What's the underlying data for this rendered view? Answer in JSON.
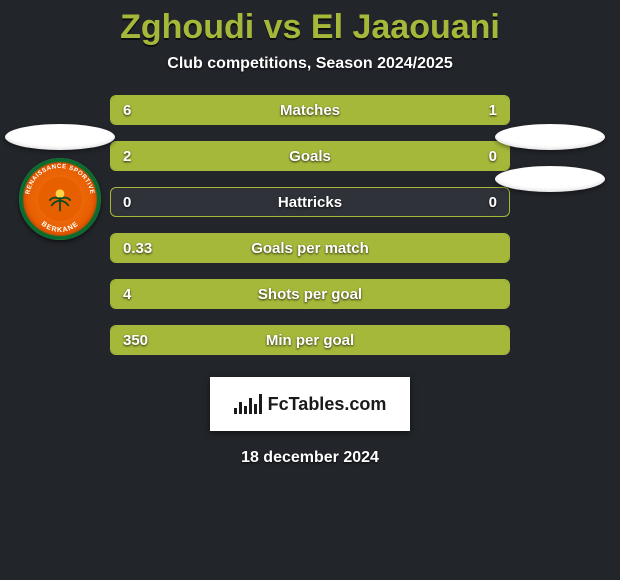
{
  "page": {
    "background_color": "#22252a",
    "title_color": "#a6b83a"
  },
  "title": "Zghoudi vs El Jaaouani",
  "subtitle": "Club competitions, Season 2024/2025",
  "date": "18 december 2024",
  "brand": "FcTables.com",
  "stats": {
    "row_bg": "#2f3238",
    "left_bar_color": "#a6b83a",
    "right_bar_color": "#a6b83a",
    "border_color": "#a6b83a",
    "text_color": "#ffffff",
    "rows": [
      {
        "label": "Matches",
        "left": "6",
        "right": "1",
        "left_pct": 0.857,
        "right_pct": 0.143
      },
      {
        "label": "Goals",
        "left": "2",
        "right": "0",
        "left_pct": 1.0,
        "right_pct": 0.0
      },
      {
        "label": "Hattricks",
        "left": "0",
        "right": "0",
        "left_pct": 0.0,
        "right_pct": 0.0
      },
      {
        "label": "Goals per match",
        "left": "0.33",
        "right": "",
        "left_pct": 1.0,
        "right_pct": 0.0
      },
      {
        "label": "Shots per goal",
        "left": "4",
        "right": "",
        "left_pct": 1.0,
        "right_pct": 0.0
      },
      {
        "label": "Min per goal",
        "left": "350",
        "right": "",
        "left_pct": 1.0,
        "right_pct": 0.0
      }
    ]
  },
  "crest": {
    "outer": "#0a0a0a",
    "ring": "#ffffff",
    "inner_ring": "#0a6b2e",
    "core": "#e85f00",
    "text_top": "RENAISSANCE SPORTIVE",
    "text_bottom": "BERKANE"
  }
}
